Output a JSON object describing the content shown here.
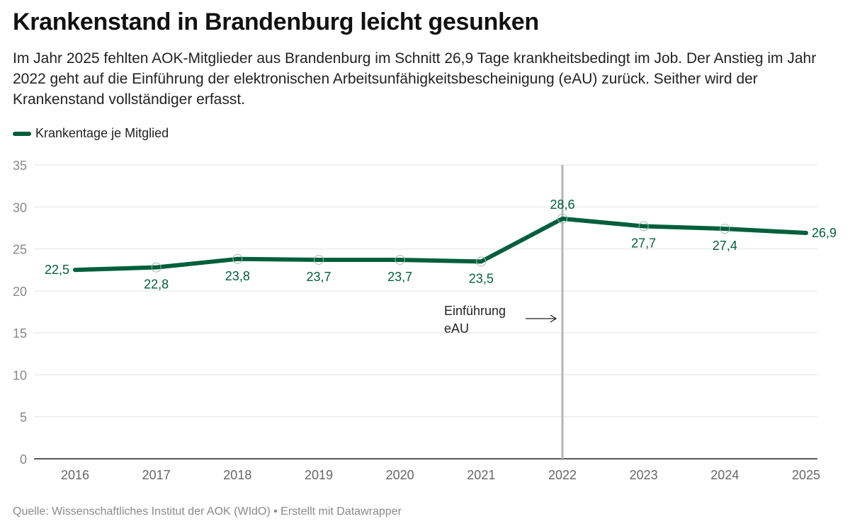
{
  "header": {
    "title": "Krankenstand in Brandenburg leicht gesunken",
    "description": "Im Jahr 2025 fehlten AOK-Mitglieder aus Brandenburg im Schnitt 26,9 Tage krankheitsbedingt im Job. Der Anstieg im Jahr 2022 geht auf die Einführung der elektronischen Arbeitsunfähigkeitsbescheinigung (eAU) zurück. Seither wird der Krankenstand vollständiger erfasst."
  },
  "footer": {
    "source": "Quelle: Wissenschaftliches Institut der AOK (WIdO) • Erstellt mit Datawrapper"
  },
  "colors": {
    "line": "#005f3c",
    "grid": "#e3e3e3",
    "axis": "#222222",
    "annotation_line": "#b5b5b5",
    "tick_label": "#888888"
  },
  "chart_data": {
    "type": "line",
    "title": "Krankenstand in Brandenburg leicht gesunken",
    "xlabel": "",
    "ylabel": "",
    "x": [
      "2016",
      "2017",
      "2018",
      "2019",
      "2020",
      "2021",
      "2022",
      "2023",
      "2024",
      "2025"
    ],
    "series": [
      {
        "name": "Krankentage je Mitglied",
        "values": [
          22.5,
          22.8,
          23.8,
          23.7,
          23.7,
          23.5,
          28.6,
          27.7,
          27.4,
          26.9
        ],
        "labels": [
          "22,5",
          "22,8",
          "23,8",
          "23,7",
          "23,7",
          "23,5",
          "28,6",
          "27,7",
          "27,4",
          "26,9"
        ],
        "label_positions": [
          "left",
          "below",
          "below",
          "below",
          "below",
          "below",
          "above",
          "below",
          "below",
          "right"
        ]
      }
    ],
    "ylim": [
      0,
      35
    ],
    "yticks": [
      0,
      5,
      10,
      15,
      20,
      25,
      30,
      35
    ],
    "ytick_labels": [
      "0",
      "5",
      "10",
      "15",
      "20",
      "25",
      "30",
      "35"
    ],
    "grid": true,
    "legend": "top-left",
    "annotations": [
      {
        "type": "vline",
        "x": "2022",
        "text_lines": [
          "Einführung",
          "eAU"
        ],
        "arrow": "right"
      }
    ]
  }
}
